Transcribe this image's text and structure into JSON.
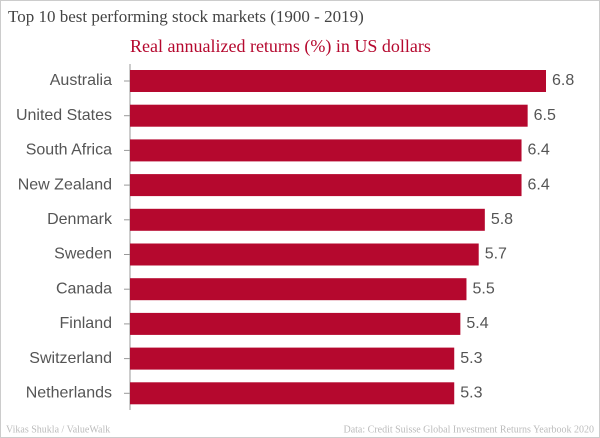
{
  "chart_data": {
    "type": "bar",
    "orientation": "horizontal",
    "title": "Top 10 best performing stock markets (1900 - 2019)",
    "subtitle": "Real annualized returns (%) in US dollars",
    "categories": [
      "Australia",
      "United States",
      "South Africa",
      "New Zealand",
      "Denmark",
      "Sweden",
      "Canada",
      "Finland",
      "Switzerland",
      "Netherlands"
    ],
    "values": [
      6.8,
      6.5,
      6.4,
      6.4,
      5.8,
      5.7,
      5.5,
      5.4,
      5.3,
      5.3
    ],
    "color": "#b5082e",
    "credit": "Vikas Shukla / ValueWalk",
    "source": "Data: Credit Suisse Global Investment Returns Yearbook 2020"
  }
}
